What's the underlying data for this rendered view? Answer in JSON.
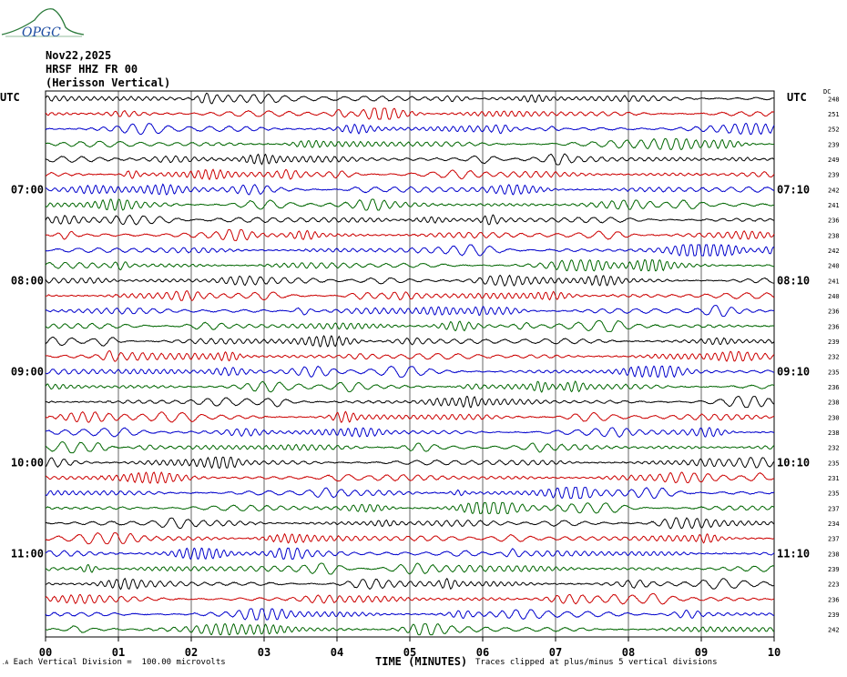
{
  "logo": {
    "text": "OPGC",
    "color": "#2a7a3a"
  },
  "header": {
    "date": "Nov22,2025",
    "station": "HRSF HHZ FR 00",
    "description": "(Herisson Vertical)"
  },
  "utc_left": "UTC",
  "utc_right": "UTC",
  "dc_label": "DC",
  "footer": {
    "scale_note": "Each Vertical Division =  100.00 microvolts",
    "clip_note": "Traces clipped at plus/minus 5 vertical divisions"
  },
  "colors": [
    "#000000",
    "#cc0000",
    "#0000cc",
    "#006600"
  ],
  "chart_data": {
    "type": "line",
    "title": "",
    "xlabel": "TIME (MINUTES)",
    "xlim": [
      0,
      10
    ],
    "x_ticks": [
      "00",
      "01",
      "02",
      "03",
      "04",
      "05",
      "06",
      "07",
      "08",
      "09",
      "10"
    ],
    "rows": 36,
    "left_time_labels": [
      {
        "row": 6,
        "label": "07:00"
      },
      {
        "row": 12,
        "label": "08:00"
      },
      {
        "row": 18,
        "label": "09:00"
      },
      {
        "row": 24,
        "label": "10:00"
      },
      {
        "row": 30,
        "label": "11:00"
      }
    ],
    "right_time_labels": [
      {
        "row": 6,
        "label": "07:10"
      },
      {
        "row": 12,
        "label": "08:10"
      },
      {
        "row": 18,
        "label": "09:10"
      },
      {
        "row": 24,
        "label": "10:10"
      },
      {
        "row": 30,
        "label": "11:10"
      }
    ],
    "dc_offsets": [
      248,
      251,
      252,
      239,
      249,
      239,
      242,
      241,
      236,
      238,
      242,
      240,
      241,
      240,
      236,
      236,
      239,
      232,
      235,
      236,
      238,
      230,
      238,
      232,
      235,
      231,
      235,
      237,
      234,
      237,
      238,
      239,
      223,
      236,
      239,
      242
    ]
  }
}
